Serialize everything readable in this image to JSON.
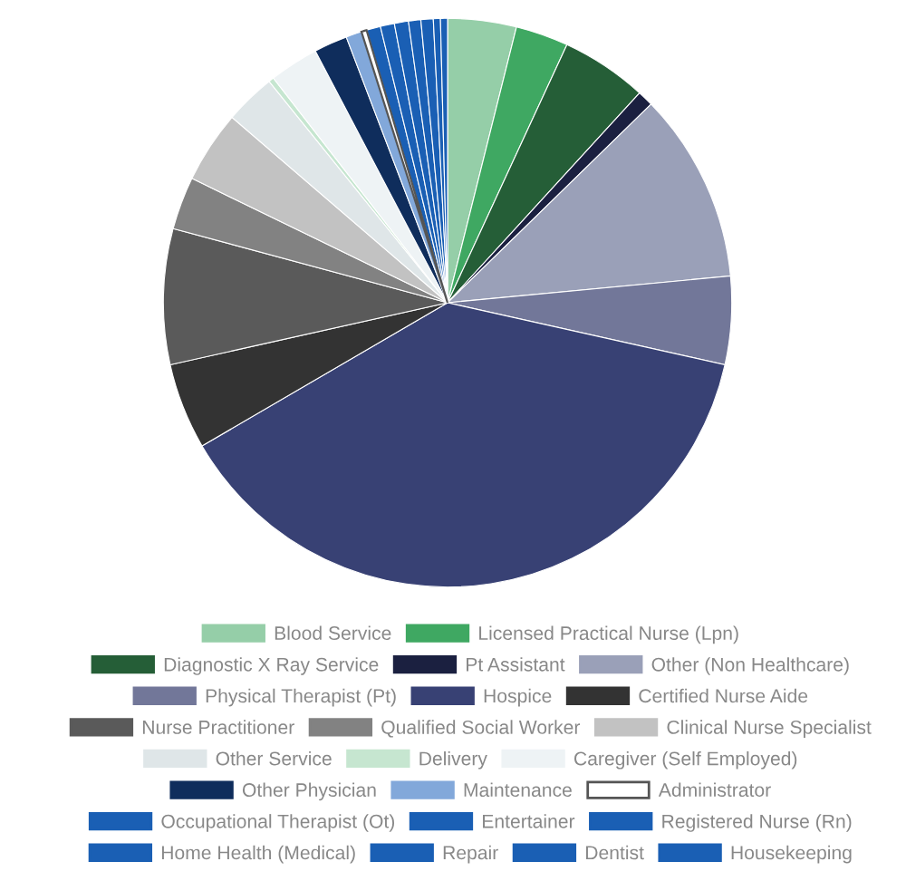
{
  "chart_data": {
    "type": "pie",
    "categories": [
      "Blood Service",
      "Licensed Practical Nurse (Lpn)",
      "Diagnostic X Ray Service",
      "Pt Assistant",
      "Other (Non Healthcare)",
      "Physical Therapist (Pt)",
      "Hospice",
      "Certified Nurse Aide",
      "Nurse Practitioner",
      "Qualified Social Worker",
      "Clinical Nurse Specialist",
      "Other Service",
      "Delivery",
      "Caregiver (Self Employed)",
      "Other Physician",
      "Maintenance",
      "Administrator",
      "Occupational Therapist (Ot)",
      "Entertainer",
      "Registered Nurse (Rn)",
      "Home Health (Medical)",
      "Repair",
      "Dentist",
      "Housekeeping"
    ],
    "values": [
      3.9,
      3.0,
      4.9,
      0.9,
      10.8,
      5.0,
      38.1,
      4.9,
      7.7,
      3.0,
      4.1,
      2.9,
      0.3,
      2.8,
      1.9,
      0.9,
      0.3,
      0.8,
      0.8,
      0.8,
      0.7,
      0.7,
      0.4,
      0.4
    ],
    "colors": [
      "#95cea8",
      "#3fa862",
      "#255e37",
      "#1b2040",
      "#9aa0b8",
      "#727799",
      "#384174",
      "#333333",
      "#5a5a5a",
      "#828282",
      "#c2c2c2",
      "#dfe6e8",
      "#c6e6d0",
      "#eef3f5",
      "#0f2d5c",
      "#82a8da",
      "#ffffff",
      "#1a5fb4",
      "#1a5fb4",
      "#1a5fb4",
      "#1a5fb4",
      "#1a5fb4",
      "#1a5fb4",
      "#1a5fb4"
    ],
    "legend": "bottom"
  }
}
